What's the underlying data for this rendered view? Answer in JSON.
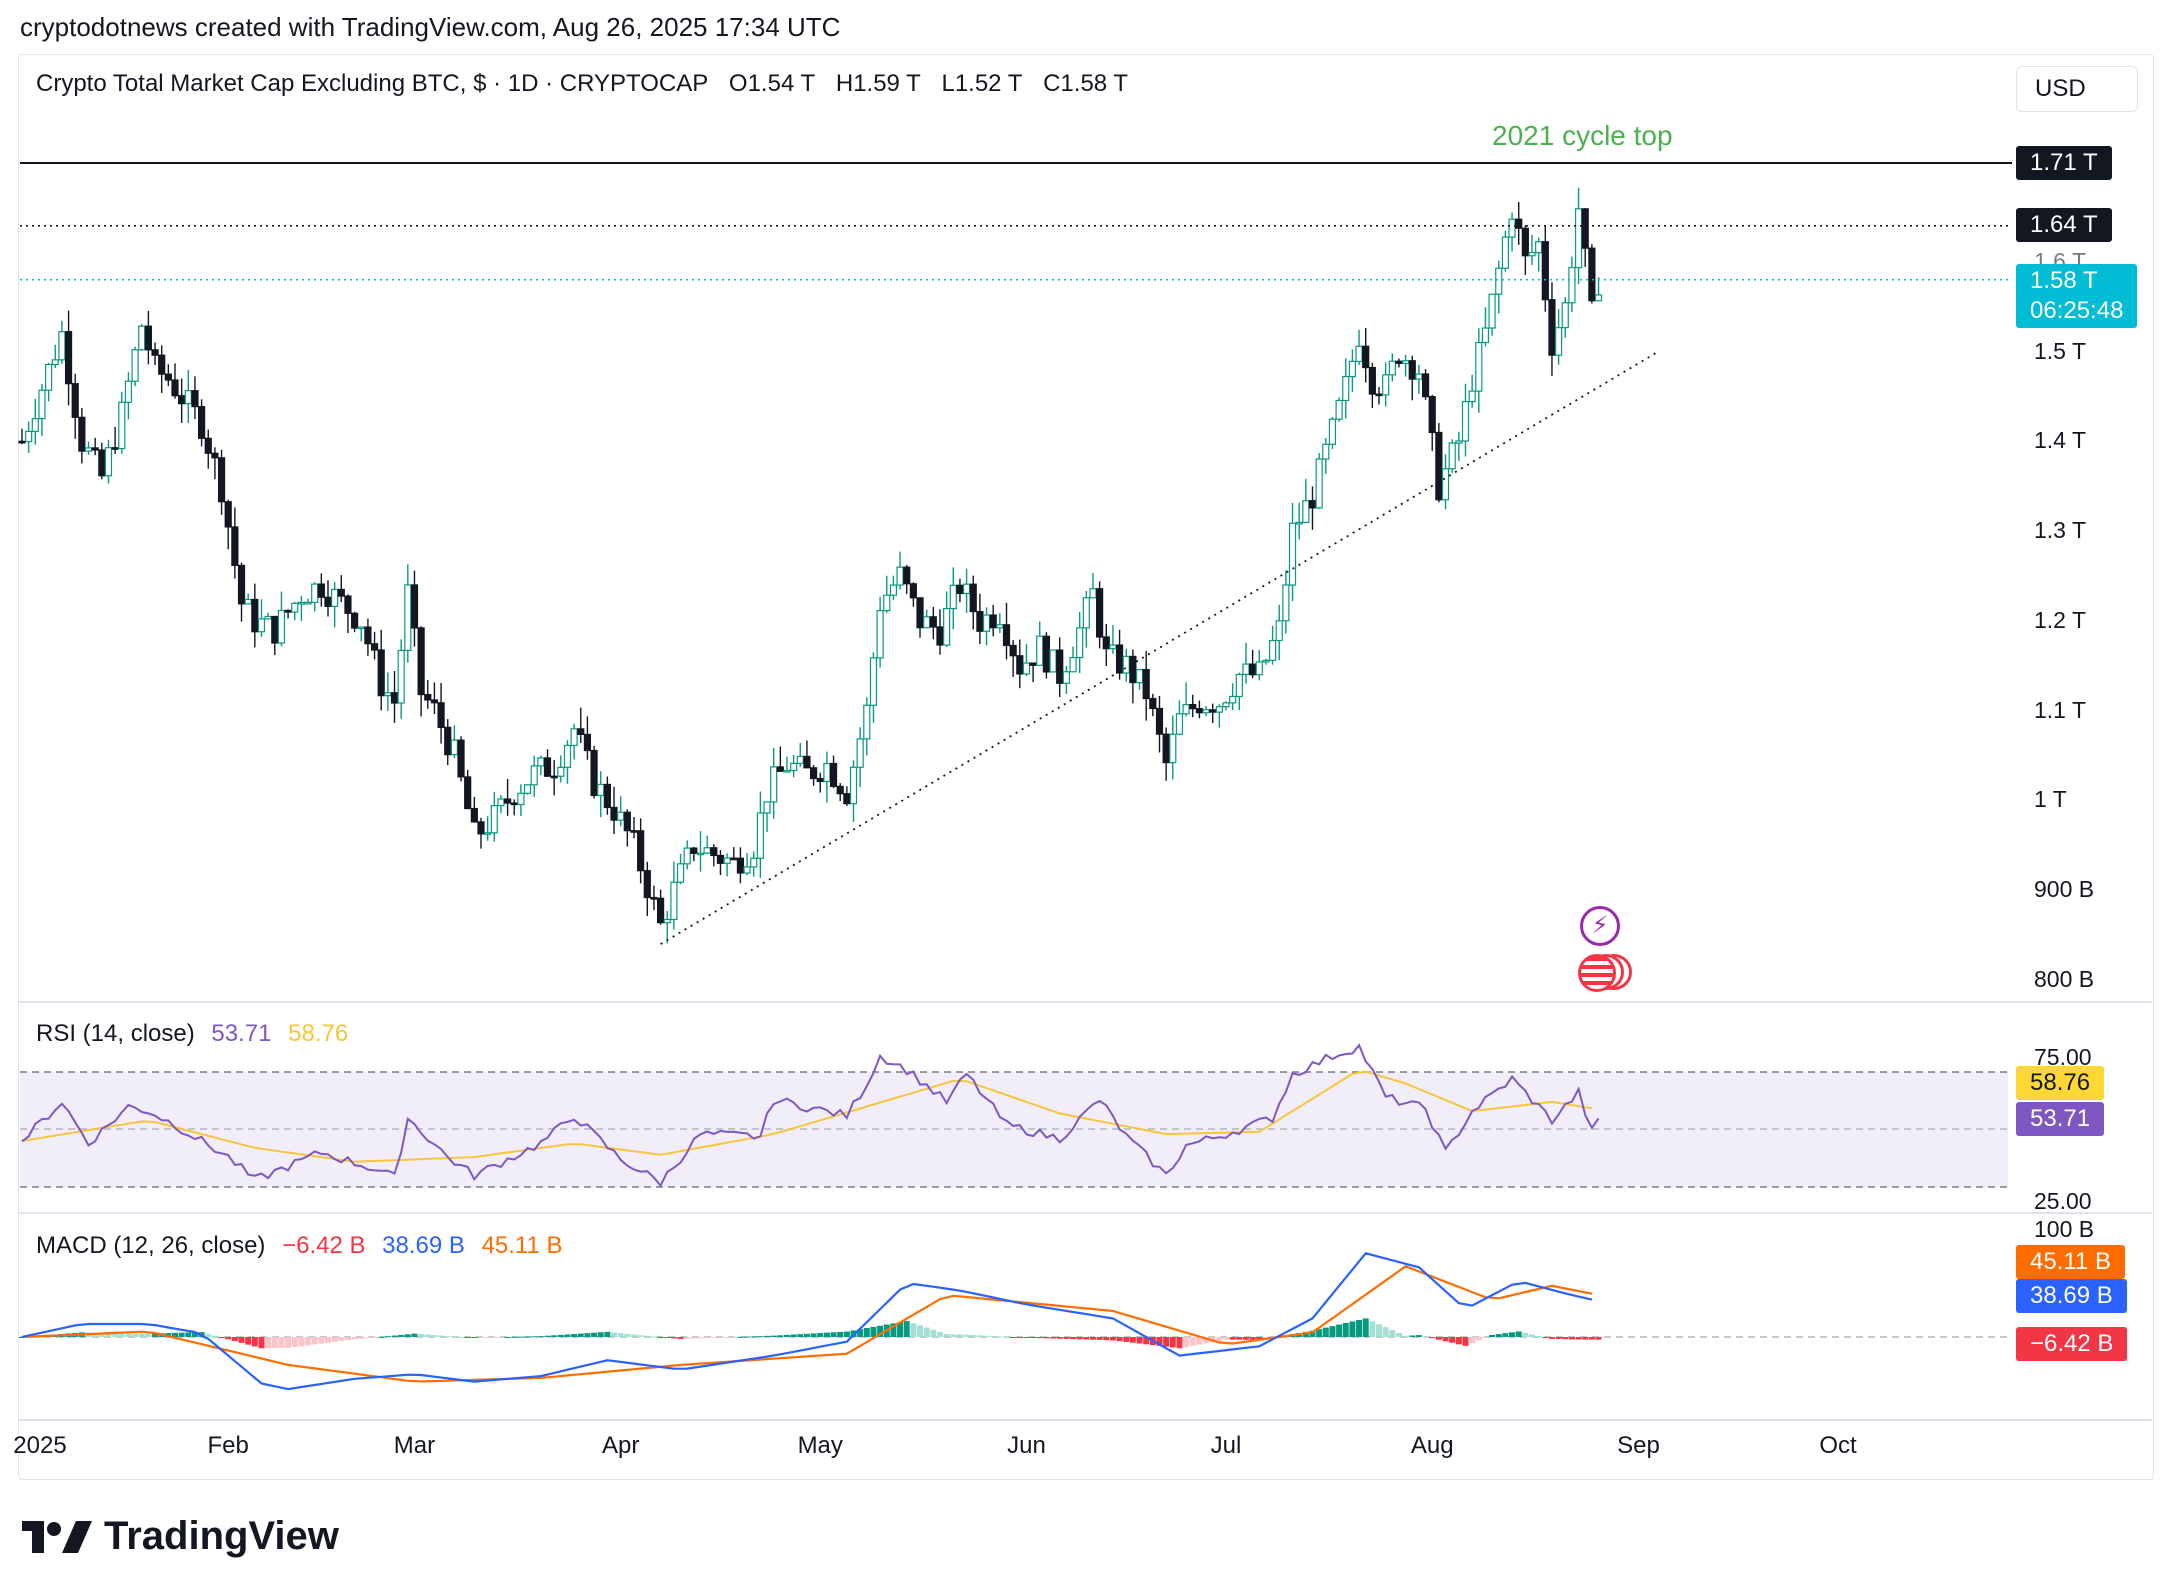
{
  "header": "cryptodotnews created with TradingView.com, Aug 26, 2025 17:34 UTC",
  "title": {
    "name": "Crypto Total Market Cap Excluding BTC, $ · 1D · CRYPTOCAP",
    "open": "O1.54 T",
    "high": "H1.59 T",
    "low": "L1.52 T",
    "close": "C1.58 T"
  },
  "currency_button": "USD",
  "annotation": "2021 cycle top",
  "price_tags": {
    "cycle_top": "1.71 T",
    "resistance": "1.64 T",
    "last": "1.58 T",
    "countdown": "06:25:48",
    "hidden_tick": "1.6 T"
  },
  "price_axis": [
    "1.5 T",
    "1.4 T",
    "1.3 T",
    "1.2 T",
    "1.1 T",
    "1 T",
    "900 B",
    "800 B"
  ],
  "rsi": {
    "label": "RSI (14, close)",
    "value": "53.71",
    "ma_value": "58.76",
    "axis": [
      "75.00",
      "25.00"
    ],
    "color": "#7e57c2",
    "ma_color": "#f7c53b"
  },
  "macd": {
    "label": "MACD (12, 26, close)",
    "hist": "−6.42 B",
    "macd": "38.69 B",
    "signal": "45.11 B",
    "axis_top": "100 B",
    "colors": {
      "macd": "#2962ff",
      "signal": "#ff6d00",
      "hist_neg": "#f23645",
      "hist_pos": "#089981"
    }
  },
  "time_axis": [
    "2025",
    "Feb",
    "Mar",
    "Apr",
    "May",
    "Jun",
    "Jul",
    "Aug",
    "Sep",
    "Oct"
  ],
  "logo": "TradingView",
  "colors": {
    "up": "#089981",
    "down": "#131722",
    "last_tag": "#00bcd4",
    "annotation": "#4caf50"
  },
  "chart_data": {
    "type": "candlestick",
    "title": "Crypto Total Market Cap Excluding BTC, $ · 1D · CRYPTOCAP",
    "y_unit": "USD (T = trillion)",
    "ylim": [
      0.8,
      1.71
    ],
    "yticks": [
      0.8,
      0.9,
      1.0,
      1.1,
      1.2,
      1.3,
      1.4,
      1.5,
      1.6
    ],
    "x_range": [
      "2025-01-01",
      "2025-10-01"
    ],
    "close_path": [
      [
        "2025-01-01",
        1.4
      ],
      [
        "2025-01-04",
        1.46
      ],
      [
        "2025-01-07",
        1.52
      ],
      [
        "2025-01-10",
        1.4
      ],
      [
        "2025-01-13",
        1.36
      ],
      [
        "2025-01-16",
        1.43
      ],
      [
        "2025-01-19",
        1.53
      ],
      [
        "2025-01-21",
        1.48
      ],
      [
        "2025-01-23",
        1.47
      ],
      [
        "2025-01-26",
        1.44
      ],
      [
        "2025-01-28",
        1.42
      ],
      [
        "2025-01-31",
        1.35
      ],
      [
        "2025-02-03",
        1.22
      ],
      [
        "2025-02-05",
        1.2
      ],
      [
        "2025-02-08",
        1.19
      ],
      [
        "2025-02-12",
        1.23
      ],
      [
        "2025-02-15",
        1.24
      ],
      [
        "2025-02-18",
        1.22
      ],
      [
        "2025-02-21",
        1.2
      ],
      [
        "2025-02-24",
        1.13
      ],
      [
        "2025-02-26",
        1.11
      ],
      [
        "2025-02-28",
        1.23
      ],
      [
        "2025-03-02",
        1.12
      ],
      [
        "2025-03-04",
        1.1
      ],
      [
        "2025-03-07",
        1.05
      ],
      [
        "2025-03-10",
        0.96
      ],
      [
        "2025-03-13",
        0.98
      ],
      [
        "2025-03-16",
        1.01
      ],
      [
        "2025-03-19",
        1.03
      ],
      [
        "2025-03-22",
        1.04
      ],
      [
        "2025-03-25",
        1.08
      ],
      [
        "2025-03-28",
        1.02
      ],
      [
        "2025-03-31",
        0.99
      ],
      [
        "2025-04-03",
        0.95
      ],
      [
        "2025-04-07",
        0.86
      ],
      [
        "2025-04-09",
        0.9
      ],
      [
        "2025-04-12",
        0.95
      ],
      [
        "2025-04-15",
        0.94
      ],
      [
        "2025-04-18",
        0.93
      ],
      [
        "2025-04-21",
        0.95
      ],
      [
        "2025-04-23",
        1.01
      ],
      [
        "2025-04-26",
        1.04
      ],
      [
        "2025-04-29",
        1.03
      ],
      [
        "2025-05-02",
        1.04
      ],
      [
        "2025-05-05",
        1.01
      ],
      [
        "2025-05-08",
        1.1
      ],
      [
        "2025-05-10",
        1.22
      ],
      [
        "2025-05-13",
        1.25
      ],
      [
        "2025-05-16",
        1.2
      ],
      [
        "2025-05-19",
        1.19
      ],
      [
        "2025-05-22",
        1.24
      ],
      [
        "2025-05-25",
        1.2
      ],
      [
        "2025-05-28",
        1.21
      ],
      [
        "2025-05-31",
        1.15
      ],
      [
        "2025-06-03",
        1.17
      ],
      [
        "2025-06-06",
        1.14
      ],
      [
        "2025-06-09",
        1.19
      ],
      [
        "2025-06-11",
        1.23
      ],
      [
        "2025-06-13",
        1.16
      ],
      [
        "2025-06-16",
        1.15
      ],
      [
        "2025-06-19",
        1.12
      ],
      [
        "2025-06-22",
        1.04
      ],
      [
        "2025-06-24",
        1.09
      ],
      [
        "2025-06-27",
        1.11
      ],
      [
        "2025-06-30",
        1.11
      ],
      [
        "2025-07-03",
        1.14
      ],
      [
        "2025-07-06",
        1.14
      ],
      [
        "2025-07-09",
        1.19
      ],
      [
        "2025-07-11",
        1.3
      ],
      [
        "2025-07-14",
        1.34
      ],
      [
        "2025-07-17",
        1.41
      ],
      [
        "2025-07-19",
        1.46
      ],
      [
        "2025-07-21",
        1.52
      ],
      [
        "2025-07-23",
        1.47
      ],
      [
        "2025-07-25",
        1.46
      ],
      [
        "2025-07-27",
        1.5
      ],
      [
        "2025-07-30",
        1.48
      ],
      [
        "2025-08-02",
        1.35
      ],
      [
        "2025-08-05",
        1.4
      ],
      [
        "2025-08-07",
        1.47
      ],
      [
        "2025-08-09",
        1.52
      ],
      [
        "2025-08-11",
        1.59
      ],
      [
        "2025-08-13",
        1.66
      ],
      [
        "2025-08-15",
        1.6
      ],
      [
        "2025-08-17",
        1.62
      ],
      [
        "2025-08-19",
        1.51
      ],
      [
        "2025-08-21",
        1.55
      ],
      [
        "2025-08-23",
        1.66
      ],
      [
        "2025-08-25",
        1.54
      ],
      [
        "2025-08-26",
        1.58
      ]
    ],
    "horizontal_lines": [
      {
        "value": 1.71,
        "style": "solid",
        "label": "1.71 T"
      },
      {
        "value": 1.64,
        "style": "dotted",
        "label": "1.64 T"
      },
      {
        "value": 1.58,
        "style": "dotted",
        "label": "1.58 T"
      }
    ],
    "trendline": {
      "from": [
        "2025-04-07",
        0.84
      ],
      "to": [
        "2025-09-04",
        1.5
      ],
      "style": "dotted"
    },
    "rsi_path": [
      [
        "2025-01-01",
        45
      ],
      [
        "2025-01-07",
        62
      ],
      [
        "2025-01-11",
        44
      ],
      [
        "2025-01-17",
        60
      ],
      [
        "2025-01-20",
        58
      ],
      [
        "2025-01-24",
        52
      ],
      [
        "2025-02-01",
        38
      ],
      [
        "2025-02-05",
        28
      ],
      [
        "2025-02-15",
        40
      ],
      [
        "2025-02-24",
        32
      ],
      [
        "2025-02-26",
        29
      ],
      [
        "2025-02-28",
        55
      ],
      [
        "2025-03-06",
        38
      ],
      [
        "2025-03-10",
        30
      ],
      [
        "2025-03-20",
        44
      ],
      [
        "2025-03-25",
        56
      ],
      [
        "2025-04-01",
        37
      ],
      [
        "2025-04-07",
        27
      ],
      [
        "2025-04-13",
        48
      ],
      [
        "2025-04-22",
        47
      ],
      [
        "2025-04-24",
        63
      ],
      [
        "2025-05-05",
        56
      ],
      [
        "2025-05-08",
        70
      ],
      [
        "2025-05-10",
        82
      ],
      [
        "2025-05-14",
        76
      ],
      [
        "2025-05-20",
        62
      ],
      [
        "2025-05-23",
        74
      ],
      [
        "2025-05-29",
        52
      ],
      [
        "2025-06-06",
        46
      ],
      [
        "2025-06-12",
        63
      ],
      [
        "2025-06-16",
        47
      ],
      [
        "2025-06-22",
        30
      ],
      [
        "2025-06-25",
        43
      ],
      [
        "2025-07-01",
        48
      ],
      [
        "2025-07-08",
        55
      ],
      [
        "2025-07-11",
        74
      ],
      [
        "2025-07-17",
        82
      ],
      [
        "2025-07-21",
        86
      ],
      [
        "2025-07-25",
        64
      ],
      [
        "2025-07-31",
        59
      ],
      [
        "2025-08-03",
        40
      ],
      [
        "2025-08-07",
        58
      ],
      [
        "2025-08-13",
        72
      ],
      [
        "2025-08-19",
        54
      ],
      [
        "2025-08-23",
        66
      ],
      [
        "2025-08-25",
        49
      ],
      [
        "2025-08-26",
        53.71
      ]
    ],
    "rsi_ma_path": [
      [
        "2025-01-01",
        45
      ],
      [
        "2025-01-20",
        54
      ],
      [
        "2025-02-05",
        42
      ],
      [
        "2025-02-20",
        36
      ],
      [
        "2025-03-10",
        38
      ],
      [
        "2025-03-25",
        44
      ],
      [
        "2025-04-07",
        39
      ],
      [
        "2025-04-24",
        48
      ],
      [
        "2025-05-08",
        60
      ],
      [
        "2025-05-22",
        72
      ],
      [
        "2025-06-06",
        57
      ],
      [
        "2025-06-22",
        48
      ],
      [
        "2025-07-06",
        49
      ],
      [
        "2025-07-21",
        76
      ],
      [
        "2025-07-28",
        70
      ],
      [
        "2025-08-07",
        58
      ],
      [
        "2025-08-19",
        62
      ],
      [
        "2025-08-26",
        58.76
      ]
    ],
    "macd_path": [
      [
        "2025-01-01",
        0
      ],
      [
        "2025-01-10",
        14
      ],
      [
        "2025-01-20",
        14
      ],
      [
        "2025-01-28",
        4
      ],
      [
        "2025-02-06",
        -50
      ],
      [
        "2025-02-10",
        -56
      ],
      [
        "2025-02-20",
        -45
      ],
      [
        "2025-03-01",
        -40
      ],
      [
        "2025-03-10",
        -48
      ],
      [
        "2025-03-20",
        -42
      ],
      [
        "2025-03-30",
        -25
      ],
      [
        "2025-04-10",
        -35
      ],
      [
        "2025-04-24",
        -20
      ],
      [
        "2025-05-05",
        -5
      ],
      [
        "2025-05-14",
        58
      ],
      [
        "2025-05-22",
        50
      ],
      [
        "2025-06-01",
        35
      ],
      [
        "2025-06-14",
        20
      ],
      [
        "2025-06-24",
        -20
      ],
      [
        "2025-07-06",
        -10
      ],
      [
        "2025-07-14",
        20
      ],
      [
        "2025-07-22",
        90
      ],
      [
        "2025-07-30",
        75
      ],
      [
        "2025-08-06",
        30
      ],
      [
        "2025-08-14",
        60
      ],
      [
        "2025-08-22",
        45
      ],
      [
        "2025-08-26",
        38.69
      ]
    ],
    "signal_path": [
      [
        "2025-01-01",
        0
      ],
      [
        "2025-01-20",
        6
      ],
      [
        "2025-02-10",
        -30
      ],
      [
        "2025-03-01",
        -48
      ],
      [
        "2025-03-20",
        -44
      ],
      [
        "2025-04-10",
        -30
      ],
      [
        "2025-05-05",
        -18
      ],
      [
        "2025-05-20",
        45
      ],
      [
        "2025-06-14",
        28
      ],
      [
        "2025-07-01",
        -8
      ],
      [
        "2025-07-14",
        5
      ],
      [
        "2025-07-28",
        76
      ],
      [
        "2025-08-10",
        40
      ],
      [
        "2025-08-19",
        55
      ],
      [
        "2025-08-26",
        45.11
      ]
    ]
  }
}
